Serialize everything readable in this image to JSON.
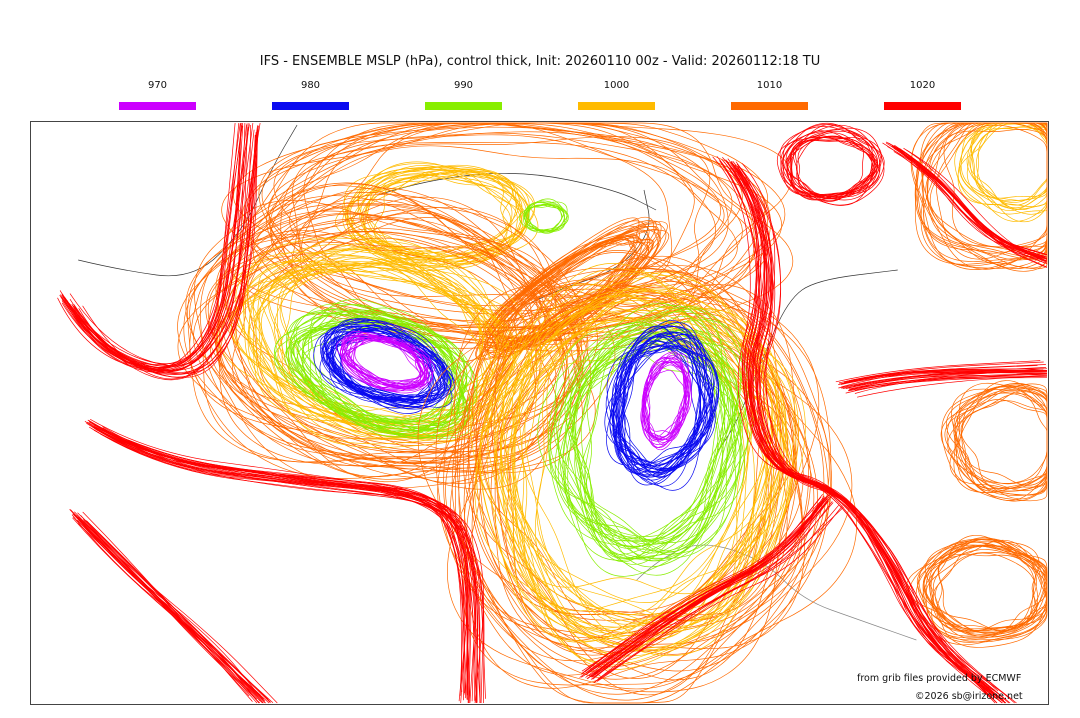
{
  "title": "IFS - ENSEMBLE MSLP (hPa), control thick, Init: 20260110 00z - Valid: 20260112:18 TU",
  "legend": [
    {
      "label": "970",
      "color": "#cc00ff"
    },
    {
      "label": "980",
      "color": "#0a0af0"
    },
    {
      "label": "990",
      "color": "#88ee00"
    },
    {
      "label": "1000",
      "color": "#ffbb00"
    },
    {
      "label": "1010",
      "color": "#ff6a00"
    },
    {
      "label": "1020",
      "color": "#ff0000"
    }
  ],
  "credits": {
    "source": "from grib files provided by ECMWF",
    "copyright": "©2026 sb@irizone.net"
  }
}
